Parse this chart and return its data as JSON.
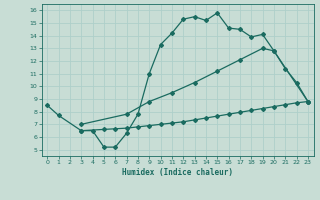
{
  "xlabel": "Humidex (Indice chaleur)",
  "xlim": [
    -0.5,
    23.5
  ],
  "ylim": [
    4.5,
    16.5
  ],
  "yticks": [
    5,
    6,
    7,
    8,
    9,
    10,
    11,
    12,
    13,
    14,
    15,
    16
  ],
  "xticks": [
    0,
    1,
    2,
    3,
    4,
    5,
    6,
    7,
    8,
    9,
    10,
    11,
    12,
    13,
    14,
    15,
    16,
    17,
    18,
    19,
    20,
    21,
    22,
    23
  ],
  "bg_color": "#c8ddd5",
  "grid_color": "#aecfca",
  "line_color": "#1a6b60",
  "line1_x": [
    0,
    1,
    3,
    4,
    5,
    6,
    7,
    8,
    9,
    10,
    11,
    12,
    13,
    14,
    15,
    16,
    17,
    18,
    19,
    20,
    21,
    22,
    23
  ],
  "line1_y": [
    8.5,
    7.7,
    6.5,
    6.5,
    5.2,
    5.2,
    6.3,
    7.8,
    11.0,
    13.3,
    14.2,
    15.3,
    15.5,
    15.2,
    15.8,
    14.6,
    14.5,
    13.9,
    14.1,
    12.8,
    11.4,
    10.3,
    8.8
  ],
  "line2_x": [
    3,
    7,
    9,
    11,
    13,
    15,
    17,
    19,
    20,
    23
  ],
  "line2_y": [
    7.0,
    7.8,
    8.8,
    9.5,
    10.3,
    11.2,
    12.1,
    13.0,
    12.8,
    8.8
  ],
  "line3_x": [
    3,
    5,
    6,
    7,
    8,
    9,
    10,
    11,
    12,
    13,
    14,
    15,
    16,
    17,
    18,
    19,
    20,
    21,
    22,
    23
  ],
  "line3_y": [
    6.5,
    6.6,
    6.65,
    6.7,
    6.8,
    6.9,
    7.0,
    7.1,
    7.2,
    7.35,
    7.5,
    7.65,
    7.8,
    7.95,
    8.1,
    8.25,
    8.4,
    8.55,
    8.7,
    8.8
  ]
}
